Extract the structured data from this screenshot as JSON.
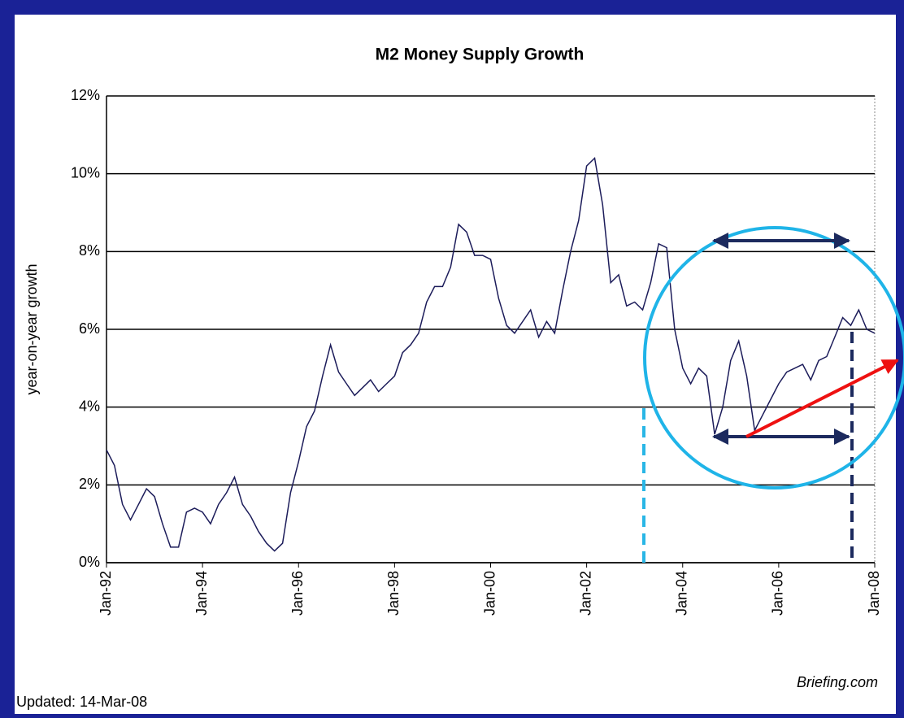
{
  "chart_data": {
    "type": "line",
    "title": "M2 Money Supply Growth",
    "ylabel": "year-on-year growth",
    "categories": [
      "Jan-92",
      null,
      null,
      null,
      null,
      null,
      null,
      null,
      null,
      null,
      null,
      null,
      "Jan-94",
      null,
      null,
      null,
      null,
      null,
      null,
      null,
      null,
      null,
      null,
      null,
      "Jan-96",
      null,
      null,
      null,
      null,
      null,
      null,
      null,
      null,
      null,
      null,
      null,
      "Jan-98",
      null,
      null,
      null,
      null,
      null,
      null,
      null,
      null,
      null,
      null,
      null,
      "Jan-00",
      null,
      null,
      null,
      null,
      null,
      null,
      null,
      null,
      null,
      null,
      null,
      "Jan-02",
      null,
      null,
      null,
      null,
      null,
      null,
      null,
      null,
      null,
      null,
      null,
      "Jan-04",
      null,
      null,
      null,
      null,
      null,
      null,
      null,
      null,
      null,
      null,
      null,
      "Jan-06",
      null,
      null,
      null,
      null,
      null,
      null,
      null,
      null,
      null,
      null,
      null,
      "Jan-08"
    ],
    "series": [
      {
        "name": "M2",
        "color": "#1c1c5a",
        "values": [
          2.9,
          2.5,
          1.5,
          1.1,
          1.5,
          1.9,
          1.7,
          1.0,
          0.4,
          0.4,
          1.3,
          1.4,
          1.3,
          1.0,
          1.5,
          1.8,
          2.2,
          1.5,
          1.2,
          0.8,
          0.5,
          0.3,
          0.5,
          1.8,
          2.6,
          3.5,
          3.9,
          4.8,
          5.6,
          4.9,
          4.6,
          4.3,
          4.5,
          4.7,
          4.4,
          4.6,
          4.8,
          5.4,
          5.6,
          5.9,
          6.7,
          7.1,
          7.1,
          7.6,
          8.7,
          8.5,
          7.9,
          7.9,
          7.8,
          6.8,
          6.1,
          5.9,
          6.2,
          6.5,
          5.8,
          6.2,
          5.9,
          7.0,
          8.0,
          8.8,
          10.2,
          10.4,
          9.2,
          7.2,
          7.4,
          6.6,
          6.7,
          6.5,
          7.2,
          8.2,
          8.1,
          6.0,
          5.0,
          4.6,
          5.0,
          4.8,
          3.3,
          4.0,
          5.2,
          5.7,
          4.8,
          3.4,
          3.8,
          4.2,
          4.6,
          4.9,
          5.0,
          5.1,
          4.7,
          5.2,
          5.3,
          5.8,
          6.3,
          6.1,
          6.5,
          6.0,
          5.9
        ]
      }
    ],
    "ylim": [
      0,
      12
    ],
    "yticks": [
      {
        "value": 0,
        "label": "0%"
      },
      {
        "value": 2,
        "label": "2%"
      },
      {
        "value": 4,
        "label": "4%"
      },
      {
        "value": 6,
        "label": "6%"
      },
      {
        "value": 8,
        "label": "8%"
      },
      {
        "value": 10,
        "label": "10%"
      },
      {
        "value": 12,
        "label": "12%"
      }
    ],
    "grid": true,
    "source": "Briefing.com",
    "updated": "Updated:  14-Mar-08"
  }
}
